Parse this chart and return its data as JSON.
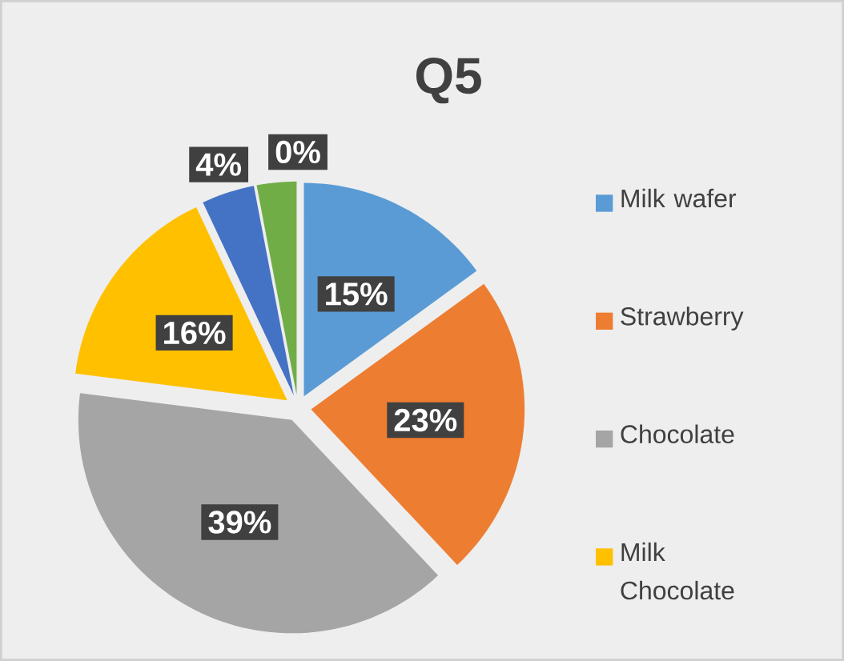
{
  "chart_data": {
    "type": "pie",
    "title": "Q5",
    "categories": [
      "Milk wafer",
      "Strawberry",
      "Chocolate",
      "Milk Chocolate",
      null,
      null,
      null
    ],
    "values": [
      15,
      23,
      39,
      16,
      4,
      3,
      0
    ],
    "value_labels": [
      "15%",
      "23%",
      "39%",
      "16%",
      "4%",
      null,
      "0%"
    ],
    "colors": [
      "#5b9bd5",
      "#ed7d31",
      "#a5a5a5",
      "#ffc000",
      "#4472c4",
      "#70ad47",
      "#255e91"
    ],
    "legend": "right"
  }
}
